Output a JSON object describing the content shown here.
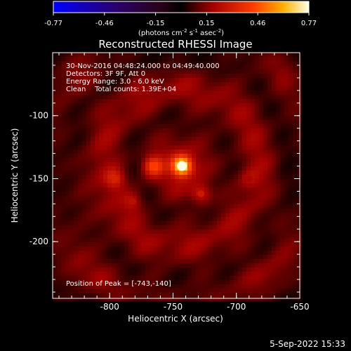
{
  "colorbar": {
    "tick_labels": [
      "-0.77",
      "-0.46",
      "-0.15",
      "0.15",
      "0.46",
      "0.77"
    ],
    "unit_label": "(photons cm",
    "unit_sup1": "-2",
    "unit_mid": " s",
    "unit_sup2": "-1",
    "unit_tail": " asec",
    "unit_sup3": "-2",
    "unit_close": ")",
    "range": [
      -0.77,
      0.77
    ]
  },
  "chart_data": {
    "type": "heatmap",
    "title": "Reconstructed RHESSI Image",
    "xlabel": "Heliocentric X (arcsec)",
    "ylabel": "Heliocentric Y (arcsec)",
    "xlim": [
      -845,
      -650
    ],
    "ylim": [
      -245,
      -50
    ],
    "xticks": [
      -800,
      -750,
      -700,
      -650
    ],
    "xtick_labels": [
      "-800",
      "-750",
      "-700",
      "-650"
    ],
    "yticks": [
      -100,
      -150,
      -200
    ],
    "ytick_labels": [
      "-100",
      "-150",
      "-200"
    ],
    "annotations": [
      "30-Nov-2016 04:48:24.000 to 04:49:40.000",
      "Detectors: 3F 9F, Att 0",
      "Energy Range: 3.0 - 6.0 keV",
      "Clean    Total counts: 1.39E+04"
    ],
    "peak_label": "Position of Peak = [-743,-140]",
    "peak": [
      -743,
      -140
    ],
    "sources": [
      {
        "x": -743,
        "y": -140,
        "value": 0.77
      },
      {
        "x": -766,
        "y": -140,
        "value": 0.42
      },
      {
        "x": -796,
        "y": -150,
        "value": 0.32
      },
      {
        "x": -728,
        "y": -162,
        "value": 0.3
      },
      {
        "x": -782,
        "y": -168,
        "value": 0.25
      },
      {
        "x": -690,
        "y": -150,
        "value": 0.2
      }
    ],
    "background_level": 0.12
  },
  "footer": {
    "timestamp": "5-Sep-2022 15:33"
  }
}
